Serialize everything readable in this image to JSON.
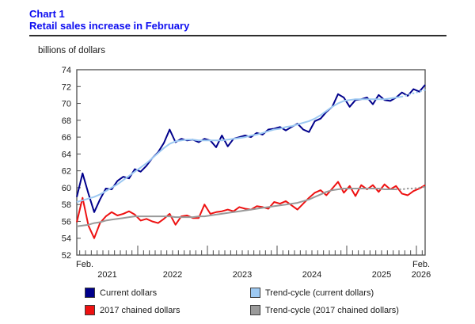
{
  "header": {
    "chart_label": "Chart 1",
    "title": "Retail sales increase in February",
    "title_color": "#0d0df0"
  },
  "chart_data": {
    "type": "line",
    "title": "Retail sales increase in February",
    "ylabel": "billions of dollars",
    "ylim": [
      52,
      74
    ],
    "y_ticks": [
      52,
      54,
      56,
      58,
      60,
      62,
      64,
      66,
      68,
      70,
      72,
      74
    ],
    "x_frequency": "monthly",
    "x_start": "February 2021",
    "x_end": "February 2026",
    "x_axis": {
      "first_point_label": "Feb.",
      "last_point_label": "Feb.",
      "year_labels": [
        "2021",
        "2022",
        "2023",
        "2024",
        "2025",
        "2026"
      ]
    },
    "grid": false,
    "legend_position": "bottom",
    "series": [
      {
        "name": "Current dollars",
        "color": "#00008b",
        "dotted_tail": 0,
        "values": [
          58.9,
          61.7,
          59.3,
          57.1,
          58.6,
          59.9,
          59.8,
          60.8,
          61.3,
          61.1,
          62.2,
          61.9,
          62.6,
          63.5,
          64.2,
          65.3,
          66.9,
          65.4,
          65.8,
          65.6,
          65.7,
          65.4,
          65.8,
          65.6,
          64.8,
          66.2,
          64.9,
          65.8,
          66.0,
          66.2,
          66.0,
          66.5,
          66.3,
          66.9,
          67.0,
          67.2,
          66.8,
          67.2,
          67.6,
          66.9,
          66.6,
          67.9,
          68.2,
          69.0,
          69.6,
          71.1,
          70.7,
          69.6,
          70.4,
          70.5,
          70.7,
          69.9,
          71.0,
          70.4,
          70.3,
          70.7,
          71.3,
          70.9,
          71.7,
          71.4,
          72.2
        ]
      },
      {
        "name": "2017 chained dollars",
        "color": "#ee1111",
        "dotted_tail": 0,
        "values": [
          55.9,
          58.8,
          55.5,
          54.0,
          55.8,
          56.6,
          57.1,
          56.7,
          56.9,
          57.2,
          56.8,
          56.1,
          56.3,
          56.0,
          55.8,
          56.3,
          56.9,
          55.6,
          56.6,
          56.7,
          56.4,
          56.4,
          58.0,
          56.9,
          57.1,
          57.2,
          57.4,
          57.2,
          57.7,
          57.5,
          57.4,
          57.8,
          57.7,
          57.5,
          58.3,
          58.1,
          58.4,
          57.9,
          57.4,
          58.1,
          58.8,
          59.4,
          59.7,
          59.1,
          59.9,
          60.7,
          59.4,
          60.2,
          59.0,
          60.3,
          59.8,
          60.3,
          59.5,
          60.4,
          59.8,
          60.2,
          59.3,
          59.1,
          59.6,
          59.9,
          60.3
        ]
      },
      {
        "name": "Trend-cycle (current dollars)",
        "color": "#9dc9f2",
        "dotted_tail": 4,
        "values": [
          58.3,
          58.5,
          58.7,
          58.9,
          59.2,
          59.6,
          60.0,
          60.4,
          60.9,
          61.4,
          61.9,
          62.4,
          62.9,
          63.5,
          64.1,
          64.7,
          65.2,
          65.5,
          65.6,
          65.7,
          65.7,
          65.6,
          65.6,
          65.6,
          65.6,
          65.6,
          65.7,
          65.8,
          65.9,
          66.0,
          66.2,
          66.3,
          66.5,
          66.7,
          66.9,
          67.0,
          67.2,
          67.3,
          67.5,
          67.7,
          67.9,
          68.2,
          68.6,
          69.1,
          69.6,
          70.0,
          70.3,
          70.4,
          70.5,
          70.5,
          70.5,
          70.5,
          70.5,
          70.5,
          70.6,
          70.7,
          70.8,
          71.0,
          71.2,
          71.4,
          71.6
        ]
      },
      {
        "name": "Trend-cycle (2017 chained dollars)",
        "color": "#9a9a9a",
        "dotted_tail": 5,
        "values": [
          55.4,
          55.5,
          55.6,
          55.8,
          55.9,
          56.1,
          56.2,
          56.3,
          56.4,
          56.5,
          56.6,
          56.6,
          56.6,
          56.6,
          56.6,
          56.6,
          56.6,
          56.5,
          56.5,
          56.5,
          56.5,
          56.6,
          56.6,
          56.7,
          56.8,
          56.9,
          57.0,
          57.1,
          57.2,
          57.3,
          57.4,
          57.5,
          57.6,
          57.7,
          57.8,
          57.9,
          58.0,
          58.1,
          58.2,
          58.4,
          58.6,
          58.9,
          59.2,
          59.5,
          59.7,
          59.8,
          59.9,
          59.9,
          59.9,
          59.9,
          59.9,
          59.9,
          59.9,
          59.8,
          59.8,
          59.8,
          59.8,
          59.9,
          59.9,
          60.0,
          60.1
        ]
      }
    ]
  }
}
